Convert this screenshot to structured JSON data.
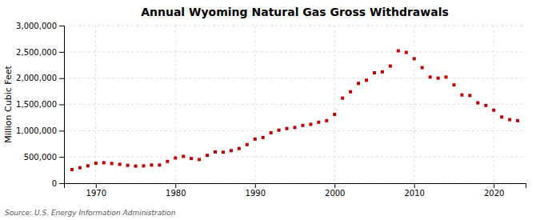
{
  "chart_data": {
    "type": "scatter",
    "title": "Annual Wyoming Natural Gas Gross Withdrawals",
    "ylabel": "Million Cubic Feet",
    "annotations": [
      "Source: U.S. Energy Information Administration"
    ],
    "x": [
      1967,
      1968,
      1969,
      1970,
      1971,
      1972,
      1973,
      1974,
      1975,
      1976,
      1977,
      1978,
      1979,
      1980,
      1981,
      1982,
      1983,
      1984,
      1985,
      1986,
      1987,
      1988,
      1989,
      1990,
      1991,
      1992,
      1993,
      1994,
      1995,
      1996,
      1997,
      1998,
      1999,
      2000,
      2001,
      2002,
      2003,
      2004,
      2005,
      2006,
      2007,
      2008,
      2009,
      2010,
      2011,
      2012,
      2013,
      2014,
      2015,
      2016,
      2017,
      2018,
      2019,
      2020,
      2021,
      2022,
      2023
    ],
    "values": [
      260000,
      295000,
      330000,
      380000,
      390000,
      375000,
      360000,
      340000,
      325000,
      330000,
      345000,
      345000,
      415000,
      480000,
      510000,
      470000,
      450000,
      530000,
      595000,
      590000,
      620000,
      660000,
      735000,
      840000,
      870000,
      960000,
      1010000,
      1040000,
      1060000,
      1100000,
      1120000,
      1160000,
      1190000,
      1310000,
      1620000,
      1740000,
      1900000,
      1960000,
      2100000,
      2120000,
      2230000,
      2520000,
      2490000,
      2370000,
      2200000,
      2020000,
      2000000,
      2020000,
      1870000,
      1680000,
      1670000,
      1530000,
      1480000,
      1390000,
      1260000,
      1210000,
      1190000
    ],
    "color": "#bb0000",
    "marker": "square",
    "xlim": [
      1966,
      2024
    ],
    "xticks": [
      1970,
      1980,
      1990,
      2000,
      2010,
      2020
    ],
    "ylim": [
      0,
      3000000
    ],
    "yticks": [
      0,
      {
        "value": 500000,
        "label": "500,000"
      },
      {
        "value": 1000000,
        "label": "1,000,000"
      },
      {
        "value": 1500000,
        "label": "1,500,000"
      },
      {
        "value": 2000000,
        "label": "2,000,000"
      },
      {
        "value": 2500000,
        "label": "2,500,000"
      },
      {
        "value": 3000000,
        "label": "3,000,000"
      }
    ],
    "grid": true
  }
}
